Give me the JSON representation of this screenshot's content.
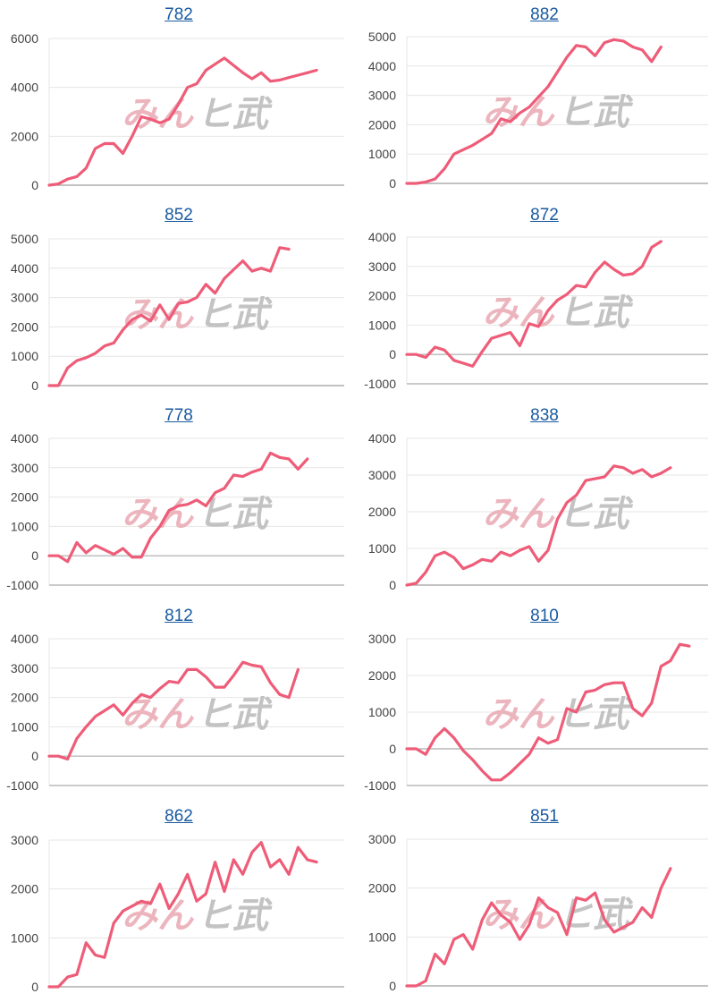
{
  "line_color": "#ee5c78",
  "grid_color": "#e6e6e6",
  "axis_color": "#aaaaaa",
  "title_color": "#1a5aa0",
  "watermark": {
    "part1": "みん",
    "part2": "ヒ武"
  },
  "chart_data": [
    {
      "type": "line",
      "title": "782",
      "ylim": [
        0,
        6000
      ],
      "yticks": [
        0,
        2000,
        4000,
        6000
      ],
      "grid": true,
      "x": [
        0,
        1,
        2,
        3,
        4,
        5,
        6,
        7,
        8,
        9,
        10,
        11,
        12,
        13,
        14,
        15,
        16,
        17,
        18,
        19,
        20,
        21,
        22,
        23,
        24,
        25,
        26,
        27,
        28,
        29,
        30,
        31,
        32
      ],
      "y": [
        0,
        50,
        250,
        350,
        700,
        1500,
        1700,
        1700,
        1300,
        2000,
        2800,
        2700,
        2550,
        2700,
        3300,
        4000,
        4150,
        4700,
        4950,
        5200,
        4900,
        4600,
        4350,
        4600,
        4250,
        4300,
        4400,
        4500,
        4600,
        4700,
        null,
        null,
        null
      ]
    },
    {
      "type": "line",
      "title": "882",
      "ylim": [
        0,
        5000
      ],
      "yticks": [
        0,
        1000,
        2000,
        3000,
        4000,
        5000
      ],
      "grid": true,
      "x": [
        0,
        1,
        2,
        3,
        4,
        5,
        6,
        7,
        8,
        9,
        10,
        11,
        12,
        13,
        14,
        15,
        16,
        17,
        18,
        19,
        20,
        21,
        22,
        23,
        24,
        25,
        26,
        27,
        28,
        29,
        30,
        31,
        32
      ],
      "y": [
        0,
        0,
        50,
        150,
        500,
        1000,
        1150,
        1300,
        1500,
        1700,
        2200,
        2100,
        2400,
        2600,
        2950,
        3300,
        3800,
        4300,
        4700,
        4650,
        4350,
        4800,
        4900,
        4850,
        4650,
        4550,
        4150,
        4650,
        null,
        null,
        null,
        null,
        null
      ]
    },
    {
      "type": "line",
      "title": "852",
      "ylim": [
        0,
        5000
      ],
      "yticks": [
        0,
        1000,
        2000,
        3000,
        4000,
        5000
      ],
      "grid": true,
      "x": [
        0,
        1,
        2,
        3,
        4,
        5,
        6,
        7,
        8,
        9,
        10,
        11,
        12,
        13,
        14,
        15,
        16,
        17,
        18,
        19,
        20,
        21,
        22,
        23,
        24,
        25,
        26,
        27,
        28,
        29,
        30,
        31,
        32
      ],
      "y": [
        0,
        0,
        600,
        850,
        950,
        1100,
        1350,
        1450,
        1900,
        2250,
        2400,
        2200,
        2750,
        2250,
        2800,
        2850,
        3000,
        3450,
        3150,
        3650,
        3950,
        4250,
        3900,
        4000,
        3900,
        4700,
        4650,
        null,
        null,
        null,
        null,
        null,
        null
      ]
    },
    {
      "type": "line",
      "title": "872",
      "ylim": [
        -1000,
        4000
      ],
      "yticks": [
        -1000,
        0,
        1000,
        2000,
        3000,
        4000
      ],
      "grid": true,
      "x": [
        0,
        1,
        2,
        3,
        4,
        5,
        6,
        7,
        8,
        9,
        10,
        11,
        12,
        13,
        14,
        15,
        16,
        17,
        18,
        19,
        20,
        21,
        22,
        23,
        24,
        25,
        26,
        27,
        28,
        29,
        30,
        31,
        32
      ],
      "y": [
        0,
        0,
        -100,
        250,
        150,
        -200,
        -300,
        -400,
        100,
        550,
        650,
        750,
        300,
        1050,
        950,
        1500,
        1850,
        2050,
        2350,
        2300,
        2800,
        3150,
        2900,
        2700,
        2750,
        3000,
        3650,
        3850,
        null,
        null,
        null,
        null,
        null
      ]
    },
    {
      "type": "line",
      "title": "778",
      "ylim": [
        -1000,
        4000
      ],
      "yticks": [
        -1000,
        0,
        1000,
        2000,
        3000,
        4000
      ],
      "grid": true,
      "x": [
        0,
        1,
        2,
        3,
        4,
        5,
        6,
        7,
        8,
        9,
        10,
        11,
        12,
        13,
        14,
        15,
        16,
        17,
        18,
        19,
        20,
        21,
        22,
        23,
        24,
        25,
        26,
        27,
        28,
        29,
        30,
        31,
        32
      ],
      "y": [
        0,
        0,
        -200,
        450,
        100,
        350,
        200,
        50,
        250,
        -50,
        -50,
        600,
        1000,
        1550,
        1700,
        1750,
        1900,
        1700,
        2150,
        2300,
        2750,
        2700,
        2850,
        2950,
        3500,
        3350,
        3300,
        2950,
        3300,
        null,
        null,
        null,
        null
      ]
    },
    {
      "type": "line",
      "title": "838",
      "ylim": [
        0,
        4000
      ],
      "yticks": [
        0,
        1000,
        2000,
        3000,
        4000
      ],
      "grid": true,
      "x": [
        0,
        1,
        2,
        3,
        4,
        5,
        6,
        7,
        8,
        9,
        10,
        11,
        12,
        13,
        14,
        15,
        16,
        17,
        18,
        19,
        20,
        21,
        22,
        23,
        24,
        25,
        26,
        27,
        28,
        29,
        30,
        31,
        32
      ],
      "y": [
        0,
        50,
        350,
        800,
        900,
        750,
        450,
        550,
        700,
        650,
        900,
        800,
        950,
        1050,
        650,
        950,
        1800,
        2250,
        2450,
        2850,
        2900,
        2950,
        3250,
        3200,
        3050,
        3150,
        2950,
        3050,
        3200,
        null,
        null,
        null,
        null
      ]
    },
    {
      "type": "line",
      "title": "812",
      "ylim": [
        -1000,
        4000
      ],
      "yticks": [
        -1000,
        0,
        1000,
        2000,
        3000,
        4000
      ],
      "grid": true,
      "x": [
        0,
        1,
        2,
        3,
        4,
        5,
        6,
        7,
        8,
        9,
        10,
        11,
        12,
        13,
        14,
        15,
        16,
        17,
        18,
        19,
        20,
        21,
        22,
        23,
        24,
        25,
        26,
        27,
        28,
        29,
        30,
        31,
        32
      ],
      "y": [
        0,
        0,
        -100,
        600,
        1000,
        1350,
        1550,
        1750,
        1400,
        1800,
        2100,
        2000,
        2300,
        2550,
        2500,
        2950,
        2950,
        2700,
        2350,
        2350,
        2750,
        3200,
        3100,
        3050,
        2500,
        2100,
        2000,
        2950,
        null,
        null,
        null,
        null,
        null
      ]
    },
    {
      "type": "line",
      "title": "810",
      "ylim": [
        -1000,
        3000
      ],
      "yticks": [
        -1000,
        0,
        1000,
        2000,
        3000
      ],
      "grid": true,
      "x": [
        0,
        1,
        2,
        3,
        4,
        5,
        6,
        7,
        8,
        9,
        10,
        11,
        12,
        13,
        14,
        15,
        16,
        17,
        18,
        19,
        20,
        21,
        22,
        23,
        24,
        25,
        26,
        27,
        28,
        29,
        30,
        31,
        32
      ],
      "y": [
        0,
        0,
        -150,
        300,
        550,
        300,
        -50,
        -300,
        -600,
        -850,
        -850,
        -650,
        -400,
        -150,
        300,
        150,
        250,
        1100,
        1000,
        1550,
        1600,
        1750,
        1800,
        1800,
        1100,
        900,
        1250,
        2250,
        2400,
        2850,
        2800,
        null,
        null
      ]
    },
    {
      "type": "line",
      "title": "862",
      "ylim": [
        0,
        3000
      ],
      "yticks": [
        0,
        1000,
        2000,
        3000
      ],
      "grid": true,
      "x": [
        0,
        1,
        2,
        3,
        4,
        5,
        6,
        7,
        8,
        9,
        10,
        11,
        12,
        13,
        14,
        15,
        16,
        17,
        18,
        19,
        20,
        21,
        22,
        23,
        24,
        25,
        26,
        27,
        28,
        29,
        30,
        31,
        32
      ],
      "y": [
        0,
        0,
        200,
        250,
        900,
        650,
        600,
        1300,
        1550,
        1650,
        1750,
        1700,
        2100,
        1600,
        1900,
        2300,
        1750,
        1900,
        2550,
        1950,
        2600,
        2300,
        2750,
        2950,
        2450,
        2600,
        2300,
        2850,
        2600,
        2550,
        null,
        null,
        null
      ]
    },
    {
      "type": "line",
      "title": "851",
      "ylim": [
        0,
        3000
      ],
      "yticks": [
        0,
        1000,
        2000,
        3000
      ],
      "grid": true,
      "x": [
        0,
        1,
        2,
        3,
        4,
        5,
        6,
        7,
        8,
        9,
        10,
        11,
        12,
        13,
        14,
        15,
        16,
        17,
        18,
        19,
        20,
        21,
        22,
        23,
        24,
        25,
        26,
        27,
        28,
        29,
        30,
        31,
        32
      ],
      "y": [
        0,
        0,
        100,
        650,
        450,
        950,
        1050,
        750,
        1350,
        1700,
        1450,
        1300,
        950,
        1250,
        1800,
        1600,
        1500,
        1050,
        1800,
        1750,
        1900,
        1350,
        1100,
        1200,
        1300,
        1600,
        1400,
        2000,
        2400,
        null,
        null,
        null,
        null
      ]
    }
  ]
}
